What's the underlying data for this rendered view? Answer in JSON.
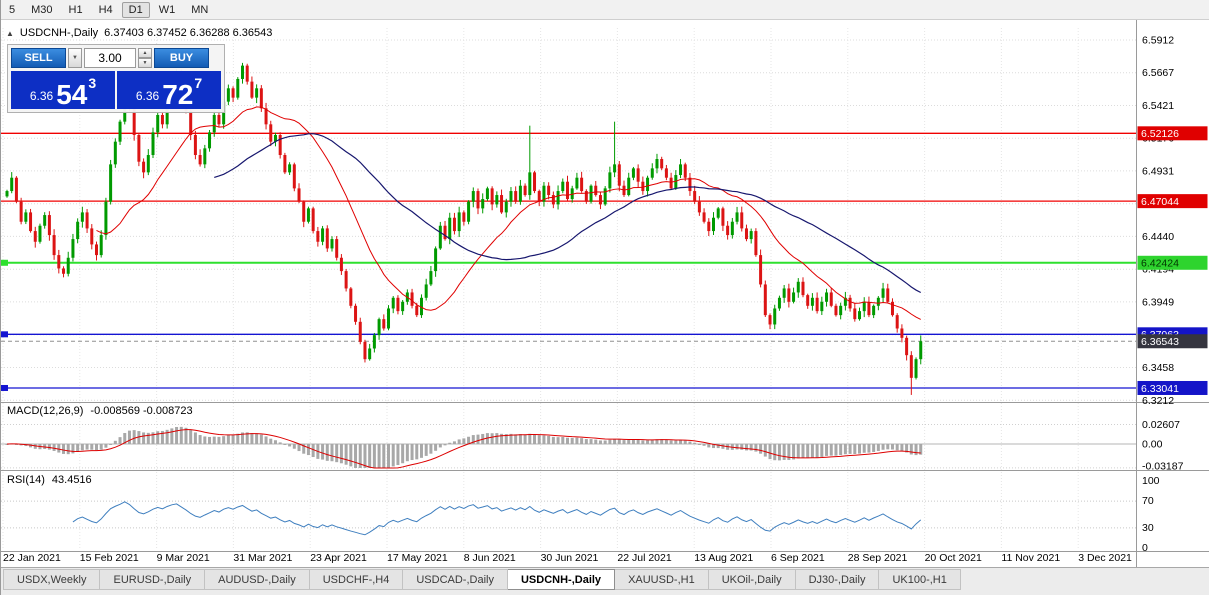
{
  "toolbar": {
    "timeframes": [
      "5",
      "M30",
      "H1",
      "H4",
      "D1",
      "W1",
      "MN"
    ],
    "active": "D1"
  },
  "chart": {
    "collapse_icon": "▲",
    "title": "USDCNH-,Daily",
    "ohlc": "6.37403 6.37452 6.36288 6.36543"
  },
  "trade_panel": {
    "sell_label": "SELL",
    "buy_label": "BUY",
    "volume": "3.00",
    "dropdown_icon": "▼",
    "spin_up_icon": "▲",
    "spin_down_icon": "▼",
    "sell_price": {
      "prefix": "6.36",
      "big": "54",
      "sup": "3"
    },
    "buy_price": {
      "prefix": "6.36",
      "big": "72",
      "sup": "7"
    }
  },
  "price_axis": {
    "labels": [
      "6.5912",
      "6.5667",
      "6.5421",
      "6.5176",
      "6.4931",
      "6.4685",
      "6.4440",
      "6.4194",
      "6.3949",
      "6.3703",
      "6.3458",
      "6.3212"
    ]
  },
  "levels": [
    {
      "value": "6.52126",
      "price": 6.52126,
      "color": "#f00000",
      "badge_bg": "#e00000",
      "badge_text": "#ffffff",
      "width": 1.3
    },
    {
      "value": "6.47044",
      "price": 6.47044,
      "color": "#f00000",
      "badge_bg": "#e00000",
      "badge_text": "#ffffff",
      "width": 1.3
    },
    {
      "value": "6.42424",
      "price": 6.42424,
      "color": "#2ee02e",
      "badge_bg": "#2ed42e",
      "badge_text": "#003300",
      "width": 2
    },
    {
      "value": "6.37063",
      "price": 6.37063,
      "color": "#1414d2",
      "badge_bg": "#1414c8",
      "badge_text": "#ffffff",
      "width": 1.3
    },
    {
      "value": "6.33041",
      "price": 6.33041,
      "color": "#1414d2",
      "badge_bg": "#1414c8",
      "badge_text": "#ffffff",
      "width": 1.3
    }
  ],
  "current_price": {
    "label": "6.36543",
    "price": 6.36543,
    "badge_bg": "#35353f",
    "badge_text": "#ffffff"
  },
  "macd_panel": {
    "label": "MACD(12,26,9)",
    "values_text": "-0.008569 -0.008723",
    "axis_labels": [
      "0.02607",
      "0.00",
      "-0.03187"
    ]
  },
  "rsi_panel": {
    "label": "RSI(14)",
    "value_text": "43.4516",
    "axis_labels": [
      "100",
      "70",
      "30",
      "0"
    ],
    "levels": [
      70,
      30
    ]
  },
  "date_axis": [
    "22 Jan 2021",
    "15 Feb 2021",
    "9 Mar 2021",
    "31 Mar 2021",
    "23 Apr 2021",
    "17 May 2021",
    "8 Jun 2021",
    "30 Jun 2021",
    "22 Jul 2021",
    "13 Aug 2021",
    "6 Sep 2021",
    "28 Sep 2021",
    "20 Oct 2021",
    "11 Nov 2021",
    "3 Dec 2021"
  ],
  "tabs": {
    "items": [
      "USDX,Weekly",
      "EURUSD-,Daily",
      "AUDUSD-,Daily",
      "USDCHF-,H4",
      "USDCAD-,Daily",
      "USDCNH-,Daily",
      "XAUUSD-,H1",
      "UKOil-,Daily",
      "DJ30-,Daily",
      "UK100-,H1"
    ],
    "active_index": 5
  },
  "colors": {
    "up": "#009a00",
    "down": "#dc1414",
    "ma_fast": "#e00000",
    "ma_slow": "#17176e",
    "macd_hist": "#a8a8a8",
    "macd_signal": "#dd0000",
    "rsi": "#3f7fbf",
    "grid": "#dcdcdc",
    "panel_border": "#9a9a9a"
  },
  "chart_data": {
    "type": "candlestick",
    "title": "USDCNH-,Daily",
    "symbol": "USDCNH-",
    "period": "Daily",
    "current_ohlc": {
      "open": 6.37403,
      "high": 6.37452,
      "low": 6.36288,
      "close": 6.36543
    },
    "x_labels": [
      "22 Jan 2021",
      "15 Feb 2021",
      "9 Mar 2021",
      "31 Mar 2021",
      "23 Apr 2021",
      "17 May 2021",
      "8 Jun 2021",
      "30 Jun 2021",
      "22 Jul 2021",
      "13 Aug 2021",
      "6 Sep 2021",
      "28 Sep 2021",
      "20 Oct 2021",
      "11 Nov 2021",
      "3 Dec 2021"
    ],
    "y_axis_ticks": [
      6.5912,
      6.5667,
      6.5421,
      6.5176,
      6.4931,
      6.4685,
      6.444,
      6.4194,
      6.3949,
      6.3703,
      6.3458,
      6.3212
    ],
    "h_lines": [
      6.52126,
      6.47044,
      6.42424,
      6.37063,
      6.33041
    ],
    "closes": [
      6.478,
      6.488,
      6.47,
      6.455,
      6.462,
      6.448,
      6.44,
      6.452,
      6.46,
      6.445,
      6.43,
      6.42,
      6.416,
      6.428,
      6.442,
      6.455,
      6.462,
      6.45,
      6.438,
      6.43,
      6.445,
      6.47,
      6.498,
      6.515,
      6.53,
      6.552,
      6.54,
      6.52,
      6.5,
      6.492,
      6.505,
      6.522,
      6.535,
      6.528,
      6.545,
      6.558,
      6.565,
      6.552,
      6.538,
      6.52,
      6.505,
      6.498,
      6.51,
      6.522,
      6.535,
      6.528,
      6.545,
      6.555,
      6.548,
      6.562,
      6.572,
      6.56,
      6.548,
      6.555,
      6.54,
      6.528,
      6.515,
      6.52,
      6.505,
      6.492,
      6.498,
      6.48,
      6.47,
      6.455,
      6.465,
      6.448,
      6.44,
      6.45,
      6.435,
      6.442,
      6.428,
      6.418,
      6.405,
      6.392,
      6.38,
      6.365,
      6.352,
      6.36,
      6.37,
      6.382,
      6.375,
      6.39,
      6.398,
      6.388,
      6.395,
      6.402,
      6.392,
      6.385,
      6.398,
      6.408,
      6.418,
      6.435,
      6.452,
      6.442,
      6.458,
      6.448,
      6.462,
      6.455,
      6.47,
      6.478,
      6.465,
      6.472,
      6.48,
      6.468,
      6.475,
      6.462,
      6.47,
      6.478,
      6.47,
      6.482,
      6.475,
      6.492,
      6.478,
      6.47,
      6.482,
      6.475,
      6.468,
      6.478,
      6.485,
      6.472,
      6.48,
      6.488,
      6.478,
      6.47,
      6.482,
      6.475,
      6.468,
      6.48,
      6.492,
      6.498,
      6.482,
      6.475,
      6.488,
      6.495,
      6.485,
      6.478,
      6.488,
      6.495,
      6.502,
      6.495,
      6.488,
      6.48,
      6.49,
      6.498,
      6.488,
      6.478,
      6.47,
      6.462,
      6.455,
      6.448,
      6.458,
      6.465,
      6.452,
      6.445,
      6.455,
      6.462,
      6.45,
      6.442,
      6.448,
      6.43,
      6.408,
      6.385,
      6.378,
      6.39,
      6.398,
      6.405,
      6.395,
      6.402,
      6.41,
      6.4,
      6.392,
      6.398,
      6.388,
      6.395,
      6.402,
      6.392,
      6.385,
      6.392,
      6.398,
      6.39,
      6.382,
      6.388,
      6.395,
      6.385,
      6.392,
      6.398,
      6.405,
      6.395,
      6.385,
      6.375,
      6.368,
      6.355,
      6.338,
      6.352,
      6.3654
    ],
    "wick_overrides": {
      "111": {
        "high": 6.527
      },
      "129": {
        "high": 6.53
      },
      "192": {
        "low": 6.3252
      }
    },
    "moving_averages": [
      {
        "name": "fast",
        "period": 20,
        "color": "#e00000"
      },
      {
        "name": "slow",
        "period": 45,
        "color": "#17176e"
      }
    ],
    "indicators": [
      {
        "type": "MACD",
        "params": [
          12,
          26,
          9
        ],
        "current": [
          -0.008569,
          -0.008723
        ],
        "axis_labels": [
          0.02607,
          0.0,
          -0.03187
        ]
      },
      {
        "type": "RSI",
        "params": [
          14
        ],
        "current": 43.4516,
        "levels": [
          70,
          30
        ],
        "range": [
          0,
          100
        ]
      }
    ]
  }
}
